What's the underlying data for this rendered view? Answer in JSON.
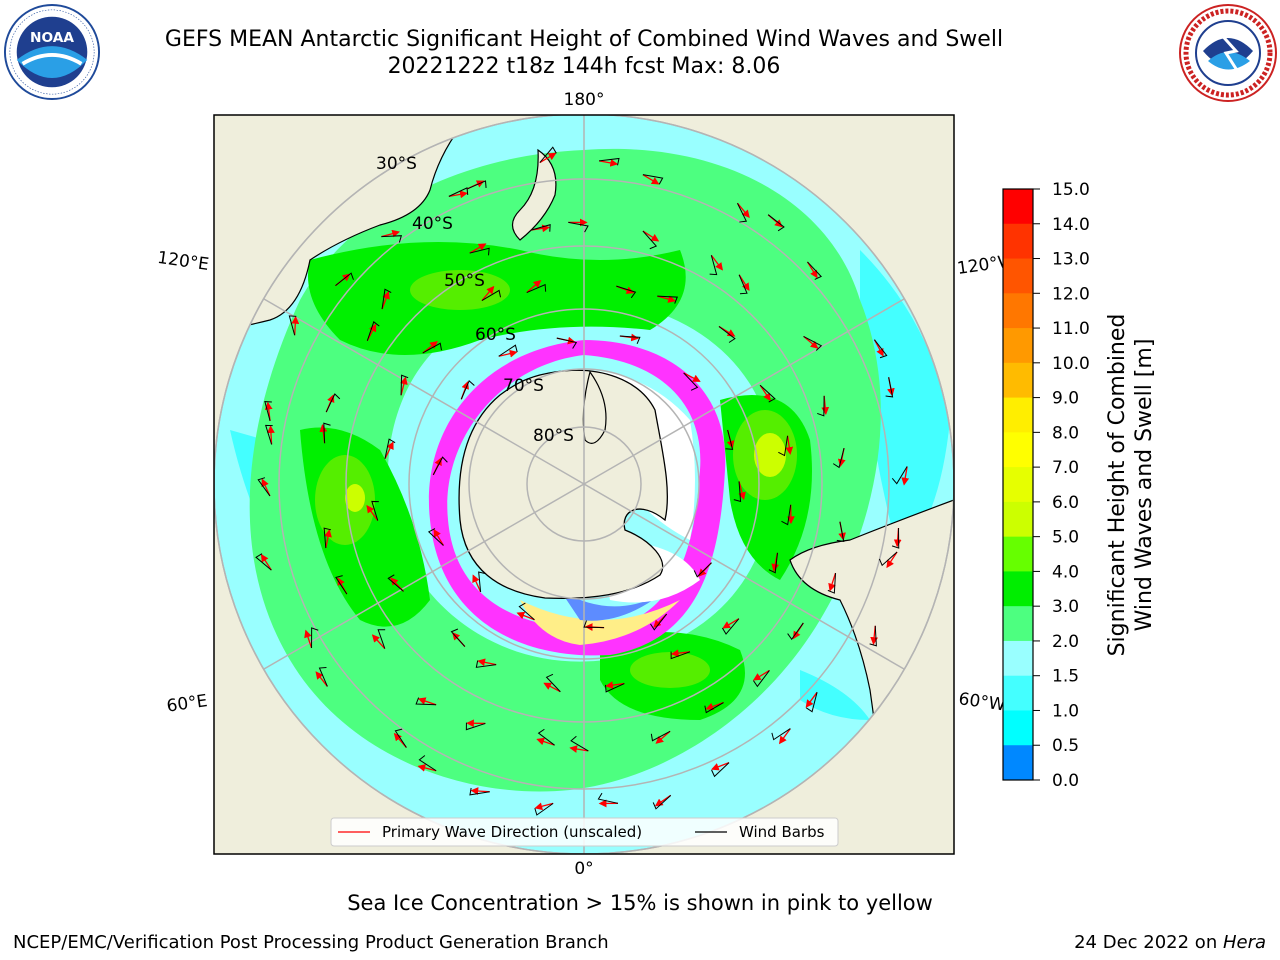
{
  "header": {
    "title_line1": "GEFS MEAN Antarctic Significant Height of Combined Wind Waves and Swell",
    "title_line2": "20221222 t18z 144h fcst   Max: 8.06"
  },
  "logos": {
    "left": {
      "name": "noaa-logo",
      "text": "NOAA",
      "ring_text": "NATIONAL OCEANIC AND ATMOSPHERIC ADMINISTRATION · U.S. DEPARTMENT OF COMMERCE"
    },
    "right": {
      "name": "nws-logo",
      "ring_text": "NATIONAL WEATHER SERVICE"
    }
  },
  "map": {
    "projection": "south-polar-stereographic",
    "longitude_labels": {
      "top": "180°",
      "bottom": "0°",
      "upper_left": "120°E",
      "lower_left": "60°E",
      "upper_right": "120°W",
      "lower_right": "60°W"
    },
    "latitude_labels": [
      "30°S",
      "40°S",
      "50°S",
      "60°S",
      "70°S",
      "80°S"
    ],
    "colors": {
      "land": "#efeedc",
      "ocean_2_3m": "#99ffff",
      "band_3_4m": "#4dff80",
      "band_4_5m": "#00f000",
      "band_5_6m": "#55ee00",
      "band_6_7m": "#ccff00",
      "ice_pink": "#ff33ff",
      "ice_blue": "#5d8cff",
      "arrow": "#ff0000",
      "barb": "#000000",
      "grid": "#b4b4b4"
    },
    "legend": {
      "arrow_label": "Primary Wave Direction (unscaled)",
      "barb_label": "Wind Barbs"
    }
  },
  "colorbar": {
    "label_line1": "Significant Height of Combined",
    "label_line2": "Wind Waves and Swell [m]",
    "ticks": [
      "15.0",
      "14.0",
      "13.0",
      "12.0",
      "11.0",
      "10.0",
      "9.0",
      "8.0",
      "7.0",
      "6.0",
      "5.0",
      "4.0",
      "3.0",
      "2.0",
      "1.5",
      "1.0",
      "0.5",
      "0.0"
    ],
    "colors_top_to_bottom": [
      "#ff0000",
      "#ff3300",
      "#ff5500",
      "#ff7700",
      "#ff9900",
      "#ffbb00",
      "#ffee00",
      "#ffff00",
      "#e6ff00",
      "#ccff00",
      "#66ff00",
      "#00ee00",
      "#4dff80",
      "#99ffff",
      "#44ffff",
      "#00ffff",
      "#0088ff",
      "#0000ff"
    ]
  },
  "footer": {
    "note": "Sea Ice Concentration > 15% is shown in pink to yellow",
    "left": "NCEP/EMC/Verification Post Processing Product Generation Branch",
    "right_date": "24 Dec 2022 on ",
    "right_machine": "Hera"
  }
}
